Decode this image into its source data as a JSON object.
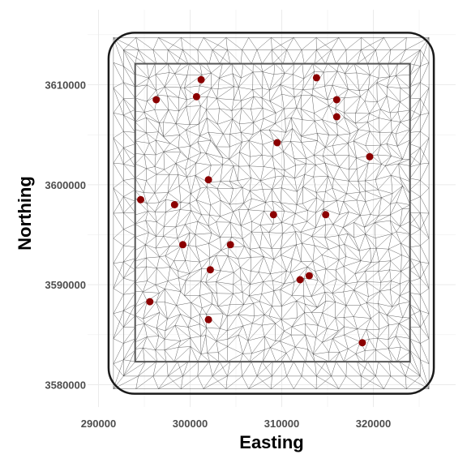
{
  "chart_data": {
    "type": "scatter",
    "title": "",
    "xlabel": "Easting",
    "ylabel": "Northing",
    "xlim": [
      288500,
      328500
    ],
    "ylim": [
      3577500,
      3615500
    ],
    "x_ticks": [
      290000,
      300000,
      310000,
      320000
    ],
    "y_ticks": [
      3580000,
      3590000,
      3600000,
      3610000
    ],
    "x_tick_labels": [
      "290000",
      "300000",
      "310000",
      "320000"
    ],
    "y_tick_labels": [
      "3580000",
      "3590000",
      "3600000",
      "3610000"
    ],
    "grid": true,
    "legend": "none",
    "mesh": {
      "inner_boundary": {
        "x": [
          294000,
          324000
        ],
        "y": [
          3582300,
          3612100
        ]
      },
      "outer_boundary": {
        "x": [
          291100,
          326600
        ],
        "y": [
          3579100,
          3615200
        ]
      },
      "description_visible": "triangulated mesh"
    },
    "points": [
      {
        "x": 301200,
        "y": 3610500
      },
      {
        "x": 313800,
        "y": 3610700
      },
      {
        "x": 296300,
        "y": 3608500
      },
      {
        "x": 300700,
        "y": 3608800
      },
      {
        "x": 316000,
        "y": 3608500
      },
      {
        "x": 316000,
        "y": 3606800
      },
      {
        "x": 309500,
        "y": 3604200
      },
      {
        "x": 319600,
        "y": 3602800
      },
      {
        "x": 302000,
        "y": 3600500
      },
      {
        "x": 294600,
        "y": 3598500
      },
      {
        "x": 298300,
        "y": 3598000
      },
      {
        "x": 309100,
        "y": 3597000
      },
      {
        "x": 314800,
        "y": 3597000
      },
      {
        "x": 299200,
        "y": 3594000
      },
      {
        "x": 304400,
        "y": 3594000
      },
      {
        "x": 302200,
        "y": 3591500
      },
      {
        "x": 313000,
        "y": 3590900
      },
      {
        "x": 312000,
        "y": 3590500
      },
      {
        "x": 295600,
        "y": 3588300
      },
      {
        "x": 302000,
        "y": 3586500
      },
      {
        "x": 318800,
        "y": 3584200
      }
    ]
  },
  "colors": {
    "background": "#ffffff",
    "grid": "#ebebeb",
    "mesh": "#333333",
    "outer_boundary": "#1a1a1a",
    "inner_boundary": "#555555",
    "points": "#8b0000"
  }
}
